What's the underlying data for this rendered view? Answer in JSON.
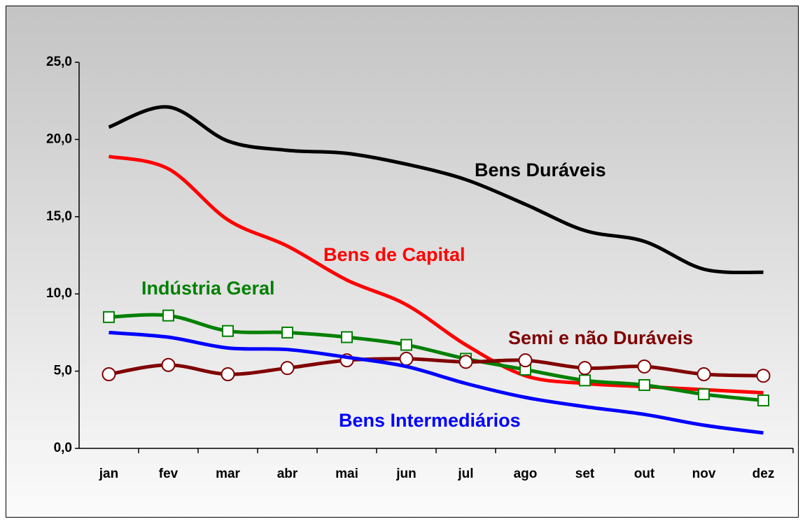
{
  "chart_data": {
    "type": "line",
    "categories": [
      "jan",
      "fev",
      "mar",
      "abr",
      "mai",
      "jun",
      "jul",
      "ago",
      "set",
      "out",
      "nov",
      "dez"
    ],
    "ylim": [
      0,
      25
    ],
    "yticks": [
      {
        "value": 0,
        "label": "0,0"
      },
      {
        "value": 5,
        "label": "5,0"
      },
      {
        "value": 10,
        "label": "10,0"
      },
      {
        "value": 15,
        "label": "15,0"
      },
      {
        "value": 20,
        "label": "20,0"
      },
      {
        "value": 25,
        "label": "25,0"
      }
    ],
    "grid": false,
    "series": [
      {
        "name": "Bens Duráveis",
        "color": "#000000",
        "values": [
          20.8,
          22.1,
          19.9,
          19.3,
          19.1,
          18.4,
          17.4,
          15.8,
          14.1,
          13.4,
          11.6,
          11.4
        ]
      },
      {
        "name": "Bens de Capital",
        "color": "#ff0000",
        "values": [
          18.9,
          18.1,
          14.8,
          13.1,
          10.9,
          9.3,
          6.7,
          4.7,
          4.2,
          4.0,
          3.8,
          3.6
        ]
      },
      {
        "name": "Indústria Geral",
        "color": "#008000",
        "marker": "square",
        "values": [
          8.5,
          8.6,
          7.6,
          7.5,
          7.2,
          6.7,
          5.8,
          5.1,
          4.4,
          4.1,
          3.5,
          3.1
        ]
      },
      {
        "name": "Semi e não Duráveis",
        "color": "#800000",
        "marker": "circle",
        "values": [
          4.8,
          5.4,
          4.8,
          5.2,
          5.7,
          5.8,
          5.6,
          5.7,
          5.2,
          5.3,
          4.8,
          4.7
        ]
      },
      {
        "name": "Bens Intermediários",
        "color": "#0000ff",
        "values": [
          7.5,
          7.2,
          6.5,
          6.4,
          5.9,
          5.3,
          4.2,
          3.3,
          2.7,
          2.2,
          1.5,
          1.0
        ]
      }
    ]
  }
}
